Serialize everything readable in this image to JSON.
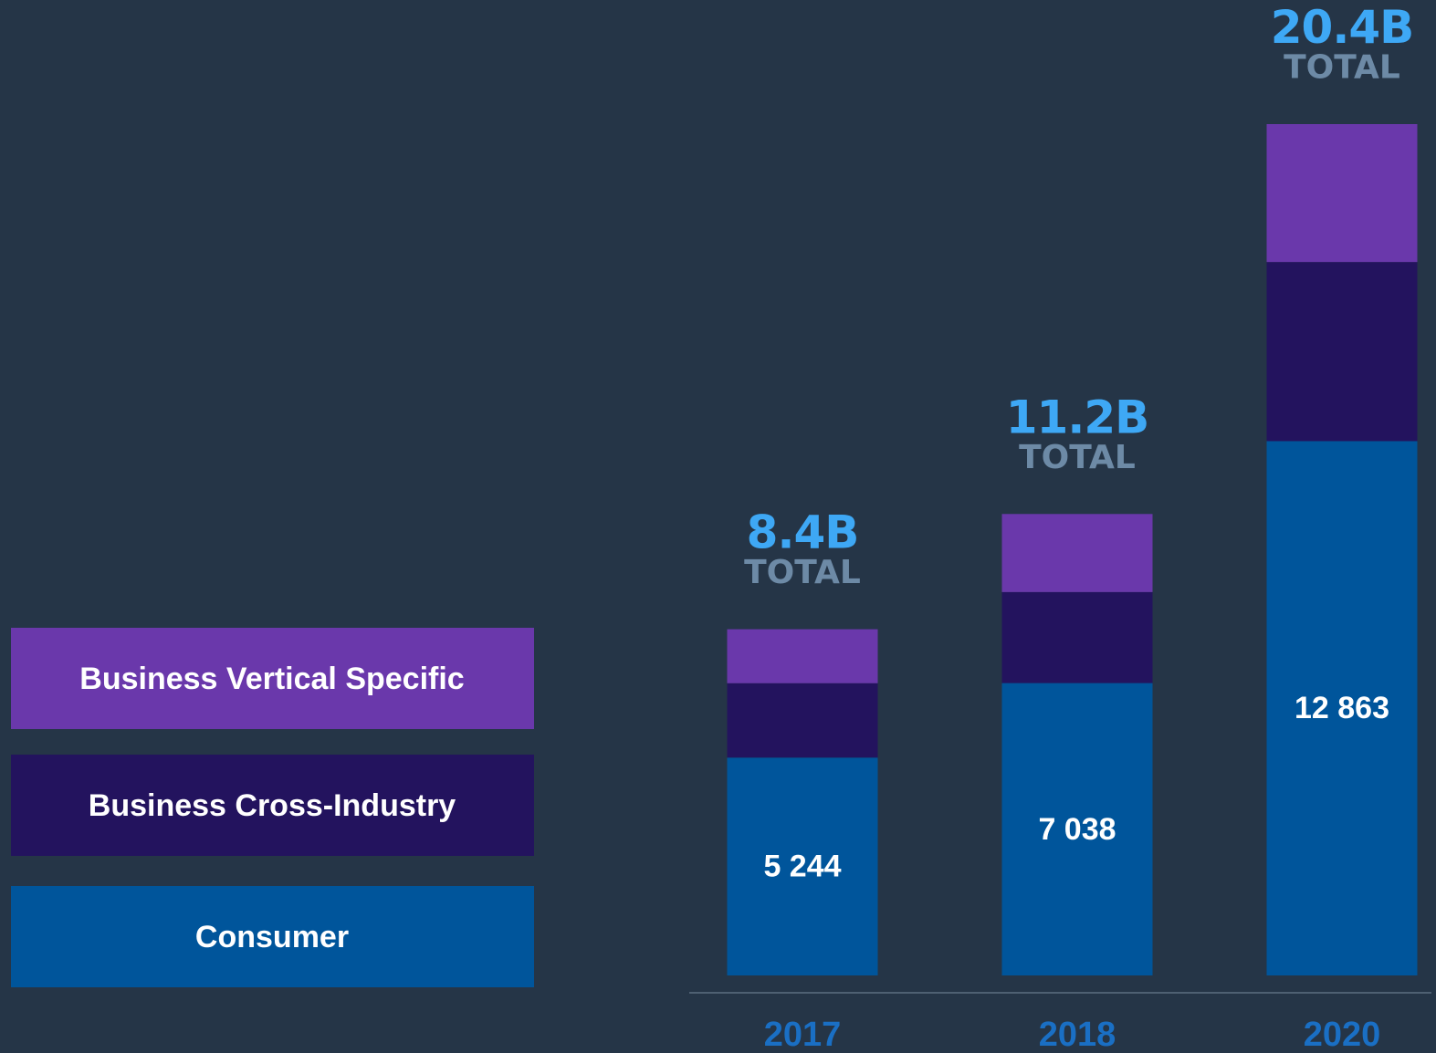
{
  "chart_data": {
    "type": "stacked_bar",
    "categories": [
      "2017",
      "2018",
      "2020"
    ],
    "series": [
      {
        "name": "Consumer",
        "color": "#00559b",
        "values": [
          5244,
          7038,
          12863
        ],
        "value_labels": [
          "5 244",
          "7 038",
          "12 863"
        ]
      },
      {
        "name": "Business Cross-Industry",
        "color": "#23135e",
        "values": [
          1790,
          2190,
          4310
        ]
      },
      {
        "name": "Business Vertical Specific",
        "color": "#6a38ab",
        "values": [
          1300,
          1880,
          3320
        ]
      }
    ],
    "annotations": {
      "totals": [
        "8.4B",
        "11.2B",
        "20.4B"
      ],
      "total_word": "TOTAL"
    }
  }
}
